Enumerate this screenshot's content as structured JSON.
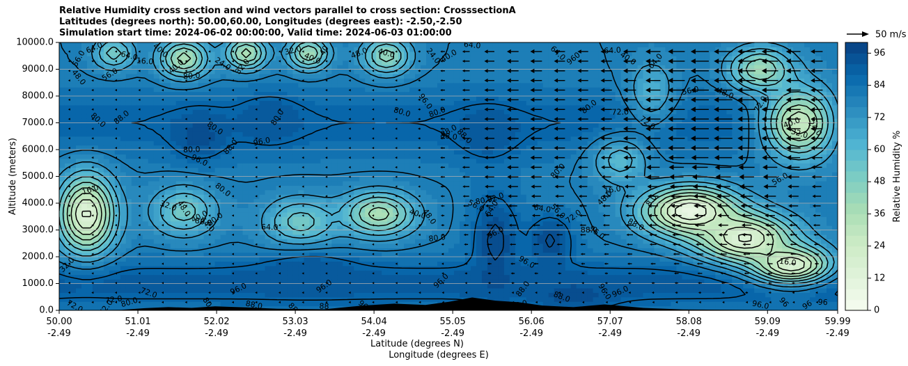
{
  "chart_data": {
    "type": "heatmap",
    "title_lines": [
      "Relative Humidity cross section and wind vectors parallel to cross section: CrosssectionA",
      "Latitudes (degrees north): 50.00,60.00, Longitudes (degrees east): -2.50,-2.50",
      "Simulation start time: 2024-06-02 00:00:00, Valid time: 2024-06-03 01:00:00"
    ],
    "xlabel": "Latitude (degrees N)",
    "xlabel2": "Longitude (degrees E)",
    "ylabel": "Altitude (meters)",
    "xlim": [
      50.0,
      59.99
    ],
    "ylim": [
      0,
      10000
    ],
    "x_ticks": [
      {
        "lat": 50.0,
        "label": "50.00",
        "lon": "-2.49"
      },
      {
        "lat": 51.01,
        "label": "51.01",
        "lon": "-2.49"
      },
      {
        "lat": 52.02,
        "label": "52.02",
        "lon": "-2.49"
      },
      {
        "lat": 53.03,
        "label": "53.03",
        "lon": "-2.49"
      },
      {
        "lat": 54.04,
        "label": "54.04",
        "lon": "-2.49"
      },
      {
        "lat": 55.05,
        "label": "55.05",
        "lon": "-2.49"
      },
      {
        "lat": 56.06,
        "label": "56.06",
        "lon": "-2.49"
      },
      {
        "lat": 57.07,
        "label": "57.07",
        "lon": "-2.49"
      },
      {
        "lat": 58.08,
        "label": "58.08",
        "lon": "-2.49"
      },
      {
        "lat": 59.09,
        "label": "59.09",
        "lon": "-2.49"
      },
      {
        "lat": 59.99,
        "label": "59.99",
        "lon": "-2.49"
      }
    ],
    "y_ticks": [
      {
        "value": 0,
        "label": "0.0"
      },
      {
        "value": 1000,
        "label": "1000.0"
      },
      {
        "value": 2000,
        "label": "2000.0"
      },
      {
        "value": 3000,
        "label": "3000.0"
      },
      {
        "value": 4000,
        "label": "4000.0"
      },
      {
        "value": 5000,
        "label": "5000.0"
      },
      {
        "value": 6000,
        "label": "6000.0"
      },
      {
        "value": 7000,
        "label": "7000.0"
      },
      {
        "value": 8000,
        "label": "8000.0"
      },
      {
        "value": 9000,
        "label": "9000.0"
      },
      {
        "value": 10000,
        "label": "10000.0"
      }
    ],
    "grid": "horizontal",
    "colorbar": {
      "label": "Relative Humidity %",
      "range": [
        0,
        100
      ],
      "step": 4,
      "ticks": [
        "0",
        "12",
        "24",
        "36",
        "48",
        "60",
        "72",
        "84",
        "96"
      ],
      "colormap": "GnBu",
      "colors": [
        "#f7fcf0",
        "#e0f3db",
        "#ccebc5",
        "#a8ddb5",
        "#7bccc4",
        "#4eb3d3",
        "#2b8cbe",
        "#0868ac",
        "#084081"
      ]
    },
    "quiver_key": {
      "label": "50 m/s",
      "speed": 50
    },
    "fields": {
      "rh_centers": [
        {
          "lat": 50.35,
          "alt": 3600,
          "rh": 14,
          "s_lat": 0.35,
          "s_alt": 1400
        },
        {
          "lat": 50.7,
          "alt": 9600,
          "rh": 52,
          "s_lat": 0.25,
          "s_alt": 600
        },
        {
          "lat": 51.6,
          "alt": 9400,
          "rh": 36,
          "s_lat": 0.3,
          "s_alt": 700
        },
        {
          "lat": 52.4,
          "alt": 9600,
          "rh": 36,
          "s_lat": 0.25,
          "s_alt": 600
        },
        {
          "lat": 53.2,
          "alt": 9600,
          "rh": 40,
          "s_lat": 0.25,
          "s_alt": 600
        },
        {
          "lat": 54.2,
          "alt": 9500,
          "rh": 44,
          "s_lat": 0.3,
          "s_alt": 700
        },
        {
          "lat": 54.1,
          "alt": 3600,
          "rh": 36,
          "s_lat": 0.45,
          "s_alt": 800
        },
        {
          "lat": 53.1,
          "alt": 3300,
          "rh": 52,
          "s_lat": 0.45,
          "s_alt": 900
        },
        {
          "lat": 51.6,
          "alt": 3700,
          "rh": 52,
          "s_lat": 0.4,
          "s_alt": 900
        },
        {
          "lat": 58.1,
          "alt": 3700,
          "rh": 8,
          "s_lat": 0.6,
          "s_alt": 900
        },
        {
          "lat": 58.8,
          "alt": 2700,
          "rh": 14,
          "s_lat": 0.6,
          "s_alt": 900
        },
        {
          "lat": 59.4,
          "alt": 1700,
          "rh": 16,
          "s_lat": 0.5,
          "s_alt": 700
        },
        {
          "lat": 59.5,
          "alt": 7000,
          "rh": 26,
          "s_lat": 0.45,
          "s_alt": 1300
        },
        {
          "lat": 59.0,
          "alt": 9000,
          "rh": 40,
          "s_lat": 0.4,
          "s_alt": 800
        },
        {
          "lat": 57.2,
          "alt": 5600,
          "rh": 60,
          "s_lat": 0.35,
          "s_alt": 900
        },
        {
          "lat": 57.6,
          "alt": 8200,
          "rh": 64,
          "s_lat": 0.3,
          "s_alt": 1200
        },
        {
          "lat": 55.6,
          "alt": 2600,
          "rh": 98,
          "s_lat": 0.3,
          "s_alt": 1800
        },
        {
          "lat": 56.3,
          "alt": 2600,
          "rh": 97,
          "s_lat": 0.3,
          "s_alt": 1000
        },
        {
          "lat": 51.8,
          "alt": 6500,
          "rh": 96,
          "s_lat": 0.35,
          "s_alt": 900
        },
        {
          "lat": 52.7,
          "alt": 7100,
          "rh": 94,
          "s_lat": 0.4,
          "s_alt": 900
        },
        {
          "lat": 53.2,
          "alt": 1500,
          "rh": 94,
          "s_lat": 0.6,
          "s_alt": 700
        },
        {
          "lat": 55.5,
          "alt": 6600,
          "rh": 94,
          "s_lat": 0.4,
          "s_alt": 1000
        },
        {
          "lat": 56.6,
          "alt": 500,
          "rh": 96,
          "s_lat": 0.5,
          "s_alt": 500
        }
      ],
      "terrain": [
        {
          "lat": 50.0,
          "alt": 0
        },
        {
          "lat": 50.8,
          "alt": 20
        },
        {
          "lat": 51.1,
          "alt": 80
        },
        {
          "lat": 51.4,
          "alt": 120
        },
        {
          "lat": 51.7,
          "alt": 90
        },
        {
          "lat": 52.0,
          "alt": 150
        },
        {
          "lat": 52.4,
          "alt": 110
        },
        {
          "lat": 52.8,
          "alt": 60
        },
        {
          "lat": 53.4,
          "alt": 40
        },
        {
          "lat": 53.9,
          "alt": 180
        },
        {
          "lat": 54.3,
          "alt": 250
        },
        {
          "lat": 54.7,
          "alt": 200
        },
        {
          "lat": 55.0,
          "alt": 320
        },
        {
          "lat": 55.3,
          "alt": 480
        },
        {
          "lat": 55.6,
          "alt": 360
        },
        {
          "lat": 55.9,
          "alt": 300
        },
        {
          "lat": 56.2,
          "alt": 180
        },
        {
          "lat": 56.6,
          "alt": 120
        },
        {
          "lat": 57.0,
          "alt": 220
        },
        {
          "lat": 57.5,
          "alt": 90
        },
        {
          "lat": 58.0,
          "alt": 30
        },
        {
          "lat": 59.99,
          "alt": 0
        }
      ]
    },
    "contour_labels": [
      {
        "lat": 50.25,
        "alt": 9400,
        "text": "56.0"
      },
      {
        "lat": 50.45,
        "alt": 9800,
        "text": "64.0"
      },
      {
        "lat": 50.9,
        "alt": 9500,
        "text": "64.0"
      },
      {
        "lat": 50.25,
        "alt": 8700,
        "text": "48.0"
      },
      {
        "lat": 50.65,
        "alt": 8800,
        "text": "56.0"
      },
      {
        "lat": 51.1,
        "alt": 9300,
        "text": "16.0"
      },
      {
        "lat": 51.3,
        "alt": 9700,
        "text": "40.0"
      },
      {
        "lat": 51.5,
        "alt": 9100,
        "text": "40.0"
      },
      {
        "lat": 51.7,
        "alt": 8750,
        "text": "80.0"
      },
      {
        "lat": 52.1,
        "alt": 9200,
        "text": "24.0"
      },
      {
        "lat": 52.35,
        "alt": 9100,
        "text": "32.0"
      },
      {
        "lat": 53.0,
        "alt": 9700,
        "text": "32.0"
      },
      {
        "lat": 53.25,
        "alt": 9400,
        "text": "40.0"
      },
      {
        "lat": 53.4,
        "alt": 9700,
        "text": "40"
      },
      {
        "lat": 53.85,
        "alt": 9600,
        "text": "48.0"
      },
      {
        "lat": 54.2,
        "alt": 9600,
        "text": "40.0"
      },
      {
        "lat": 54.8,
        "alt": 9500,
        "text": "24.0"
      },
      {
        "lat": 55.0,
        "alt": 9500,
        "text": "40.0"
      },
      {
        "lat": 55.3,
        "alt": 9900,
        "text": "64.0"
      },
      {
        "lat": 56.4,
        "alt": 9600,
        "text": "64.0"
      },
      {
        "lat": 56.6,
        "alt": 9400,
        "text": "960"
      },
      {
        "lat": 57.1,
        "alt": 9700,
        "text": "64.0"
      },
      {
        "lat": 57.3,
        "alt": 9400,
        "text": "40.0"
      },
      {
        "lat": 57.65,
        "alt": 9300,
        "text": "64.0"
      },
      {
        "lat": 58.1,
        "alt": 8200,
        "text": "56.0"
      },
      {
        "lat": 58.55,
        "alt": 8100,
        "text": "48.0"
      },
      {
        "lat": 59.0,
        "alt": 7700,
        "text": "72.0"
      },
      {
        "lat": 59.4,
        "alt": 7000,
        "text": "40.0"
      },
      {
        "lat": 59.5,
        "alt": 6600,
        "text": "32.0"
      },
      {
        "lat": 59.7,
        "alt": 6800,
        "text": "24.0"
      },
      {
        "lat": 59.25,
        "alt": 4900,
        "text": "56.0"
      },
      {
        "lat": 59.35,
        "alt": 1800,
        "text": "16.0"
      },
      {
        "lat": 50.5,
        "alt": 7100,
        "text": "80.0"
      },
      {
        "lat": 50.8,
        "alt": 7200,
        "text": "88.0"
      },
      {
        "lat": 51.7,
        "alt": 6000,
        "text": "80.0"
      },
      {
        "lat": 52.0,
        "alt": 6800,
        "text": "80.0"
      },
      {
        "lat": 52.2,
        "alt": 6100,
        "text": "88.0"
      },
      {
        "lat": 52.6,
        "alt": 6300,
        "text": "96.0"
      },
      {
        "lat": 51.8,
        "alt": 5600,
        "text": "96.0"
      },
      {
        "lat": 52.8,
        "alt": 7200,
        "text": "80.0"
      },
      {
        "lat": 54.85,
        "alt": 7400,
        "text": "80.0"
      },
      {
        "lat": 54.4,
        "alt": 7400,
        "text": "80.0"
      },
      {
        "lat": 54.7,
        "alt": 7800,
        "text": "96.0"
      },
      {
        "lat": 55.0,
        "alt": 6700,
        "text": "88.0"
      },
      {
        "lat": 55.0,
        "alt": 6500,
        "text": "88.0"
      },
      {
        "lat": 55.2,
        "alt": 6500,
        "text": "88.0"
      },
      {
        "lat": 56.8,
        "alt": 7600,
        "text": "80.0"
      },
      {
        "lat": 57.2,
        "alt": 7400,
        "text": "72.0"
      },
      {
        "lat": 57.55,
        "alt": 7000,
        "text": "72.0"
      },
      {
        "lat": 56.4,
        "alt": 5200,
        "text": "80.0"
      },
      {
        "lat": 55.45,
        "alt": 4100,
        "text": "80.0"
      },
      {
        "lat": 55.35,
        "alt": 3900,
        "text": "56.0"
      },
      {
        "lat": 55.55,
        "alt": 3800,
        "text": "64.0"
      },
      {
        "lat": 55.6,
        "alt": 4200,
        "text": "72.0"
      },
      {
        "lat": 54.6,
        "alt": 3600,
        "text": "40.0"
      },
      {
        "lat": 54.75,
        "alt": 3500,
        "text": "48.0"
      },
      {
        "lat": 55.6,
        "alt": 2900,
        "text": "96.0"
      },
      {
        "lat": 56.2,
        "alt": 3800,
        "text": "64.0"
      },
      {
        "lat": 56.4,
        "alt": 3700,
        "text": "56.0"
      },
      {
        "lat": 56.6,
        "alt": 3500,
        "text": "72.0"
      },
      {
        "lat": 56.8,
        "alt": 3000,
        "text": "88.0"
      },
      {
        "lat": 56.9,
        "alt": 2900,
        "text": "96.0"
      },
      {
        "lat": 57.0,
        "alt": 4200,
        "text": "48.0"
      },
      {
        "lat": 57.1,
        "alt": 4500,
        "text": "16.0"
      },
      {
        "lat": 57.4,
        "alt": 3200,
        "text": "88.0"
      },
      {
        "lat": 57.6,
        "alt": 4100,
        "text": "8.0"
      },
      {
        "lat": 50.4,
        "alt": 4500,
        "text": "16.0"
      },
      {
        "lat": 51.4,
        "alt": 3900,
        "text": "32.0"
      },
      {
        "lat": 51.6,
        "alt": 3800,
        "text": "48.0"
      },
      {
        "lat": 51.8,
        "alt": 3500,
        "text": "40.0"
      },
      {
        "lat": 51.85,
        "alt": 3300,
        "text": "88.0"
      },
      {
        "lat": 51.9,
        "alt": 3200,
        "text": "64.0"
      },
      {
        "lat": 52.0,
        "alt": 3400,
        "text": "80.0"
      },
      {
        "lat": 52.7,
        "alt": 3100,
        "text": "64.0"
      },
      {
        "lat": 52.1,
        "alt": 4500,
        "text": "80.0"
      },
      {
        "lat": 50.1,
        "alt": 1700,
        "text": "32.0"
      },
      {
        "lat": 50.7,
        "alt": 400,
        "text": "72.0"
      },
      {
        "lat": 50.2,
        "alt": 150,
        "text": "72.0"
      },
      {
        "lat": 50.6,
        "alt": 100,
        "text": "72.0"
      },
      {
        "lat": 50.9,
        "alt": 300,
        "text": "80.0"
      },
      {
        "lat": 51.15,
        "alt": 650,
        "text": "72.0"
      },
      {
        "lat": 51.9,
        "alt": 300,
        "text": "80"
      },
      {
        "lat": 52.3,
        "alt": 800,
        "text": "96.0"
      },
      {
        "lat": 52.5,
        "alt": 200,
        "text": "88.0"
      },
      {
        "lat": 53.0,
        "alt": 100,
        "text": "88"
      },
      {
        "lat": 53.4,
        "alt": 900,
        "text": "96.0"
      },
      {
        "lat": 53.4,
        "alt": 150,
        "text": "88"
      },
      {
        "lat": 53.9,
        "alt": 200,
        "text": "96"
      },
      {
        "lat": 54.9,
        "alt": 1100,
        "text": "96.0"
      },
      {
        "lat": 54.85,
        "alt": 2700,
        "text": "80.0"
      },
      {
        "lat": 56.0,
        "alt": 1800,
        "text": "96.0"
      },
      {
        "lat": 55.95,
        "alt": 800,
        "text": "88.0"
      },
      {
        "lat": 55.9,
        "alt": 200,
        "text": "96.0"
      },
      {
        "lat": 56.45,
        "alt": 500,
        "text": "88.0"
      },
      {
        "lat": 57.0,
        "alt": 700,
        "text": "96.0"
      },
      {
        "lat": 57.2,
        "alt": 700,
        "text": "96.0"
      },
      {
        "lat": 59.0,
        "alt": 200,
        "text": "96.0"
      },
      {
        "lat": 59.3,
        "alt": 300,
        "text": "96"
      },
      {
        "lat": 59.6,
        "alt": 200,
        "text": "96"
      },
      {
        "lat": 59.8,
        "alt": 300,
        "text": "96"
      }
    ]
  }
}
